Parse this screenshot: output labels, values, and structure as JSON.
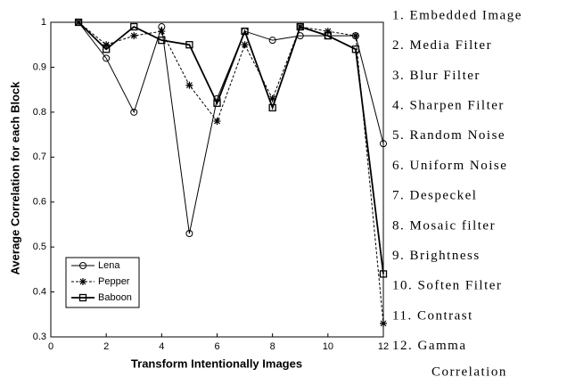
{
  "chart_data": {
    "type": "line",
    "x_label": "Transform Intentionally Images",
    "y_label": "Average Correlation for each Block",
    "x": [
      1,
      2,
      3,
      4,
      5,
      6,
      7,
      8,
      9,
      10,
      11,
      12
    ],
    "series": [
      {
        "name": "Lena",
        "color": "#000000",
        "linestyle": "solid",
        "marker": "circle",
        "values": [
          1.0,
          0.92,
          0.8,
          0.99,
          0.53,
          0.83,
          0.98,
          0.96,
          0.97,
          0.97,
          0.97,
          0.73
        ]
      },
      {
        "name": "Pepper",
        "color": "#000000",
        "linestyle": "dashed",
        "marker": "star",
        "values": [
          1.0,
          0.95,
          0.97,
          0.98,
          0.86,
          0.78,
          0.95,
          0.83,
          0.99,
          0.98,
          0.97,
          0.33
        ]
      },
      {
        "name": "Baboon",
        "color": "#000000",
        "linestyle": "thick",
        "marker": "square",
        "values": [
          1.0,
          0.94,
          0.99,
          0.96,
          0.95,
          0.82,
          0.98,
          0.81,
          0.99,
          0.97,
          0.94,
          0.44
        ]
      }
    ],
    "xlim": [
      0,
      12
    ],
    "xticks": [
      0,
      2,
      4,
      6,
      8,
      10,
      12
    ],
    "ylim": [
      0.3,
      1
    ],
    "yticks": [
      0.3,
      0.4,
      0.5,
      0.6,
      0.7,
      0.8,
      0.9,
      1
    ],
    "legend": "lower left"
  },
  "side_list": [
    "1. Embedded Image",
    "2. Media Filter",
    "3. Blur Filter",
    "4. Sharpen Filter",
    "5. Random Noise",
    "6. Uniform Noise",
    "7. Despeckel",
    "8. Mosaic filter",
    "9. Brightness",
    "10. Soften Filter",
    "11. Contrast",
    "12. Gamma"
  ],
  "side_caption": "Correlation"
}
